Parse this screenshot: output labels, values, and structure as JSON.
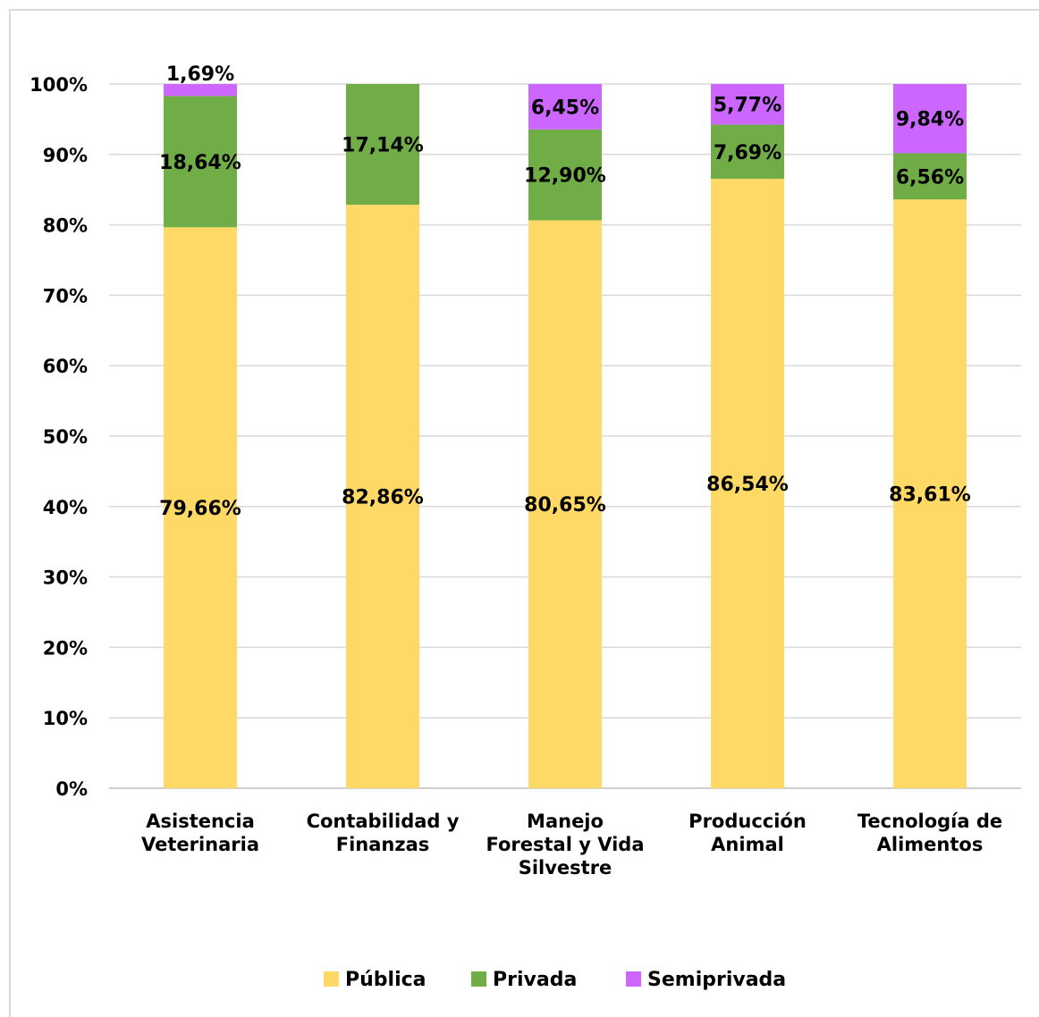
{
  "chart_data": {
    "type": "bar",
    "stacked": true,
    "categories": [
      [
        "Asistencia",
        "Veterinaria"
      ],
      [
        "Contabilidad y",
        "Finanzas"
      ],
      [
        "Manejo",
        "Forestal y Vida",
        "Silvestre"
      ],
      [
        "Producción",
        "Animal"
      ],
      [
        "Tecnología de",
        "Alimentos"
      ]
    ],
    "series": [
      {
        "name": "Pública",
        "color": "#FFD966",
        "values": [
          79.66,
          82.86,
          80.65,
          86.54,
          83.61
        ],
        "labels": [
          "79,66%",
          "82,86%",
          "80,65%",
          "86,54%",
          "83,61%"
        ]
      },
      {
        "name": "Privada",
        "color": "#70AD47",
        "values": [
          18.64,
          17.14,
          12.9,
          7.69,
          6.56
        ],
        "labels": [
          "18,64%",
          "17,14%",
          "12,90%",
          "7,69%",
          "6,56%"
        ]
      },
      {
        "name": "Semiprivada",
        "color": "#CC66FF",
        "values": [
          1.69,
          0,
          6.45,
          5.77,
          9.84
        ],
        "labels": [
          "1,69%",
          "",
          "6,45%",
          "5,77%",
          "9,84%"
        ]
      }
    ],
    "ylim": [
      0,
      100
    ],
    "yticks": [
      "0%",
      "10%",
      "20%",
      "30%",
      "40%",
      "50%",
      "60%",
      "70%",
      "80%",
      "90%",
      "100%"
    ],
    "grid": true,
    "legend": "bottom",
    "title": "",
    "xlabel": "",
    "ylabel": ""
  }
}
